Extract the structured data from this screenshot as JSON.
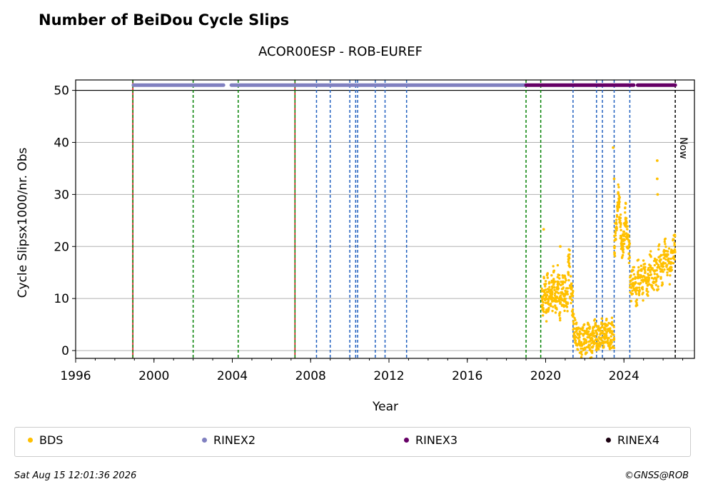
{
  "header": {
    "title": "Number of BeiDou Cycle Slips",
    "subtitle": "ACOR00ESP - ROB-EUREF"
  },
  "footer": {
    "timestamp": "Sat Aug 15 12:01:36 2026",
    "copyright": "©GNSS@ROB"
  },
  "legend": [
    {
      "label": "BDS",
      "color": "#ffc000"
    },
    {
      "label": "RINEX2",
      "color": "#8080c0"
    },
    {
      "label": "RINEX3",
      "color": "#660066"
    },
    {
      "label": "RINEX4",
      "color": "#1a0010"
    }
  ],
  "chart_data": {
    "type": "scatter",
    "xlabel": "Year",
    "ylabel": "Cycle Slipsx1000/nr. Obs",
    "xlim": [
      1996,
      2027.6
    ],
    "ylim": [
      -1.5,
      52
    ],
    "x_ticks": [
      1996,
      2000,
      2004,
      2008,
      2012,
      2016,
      2020,
      2024
    ],
    "y_ticks": [
      0,
      10,
      20,
      30,
      40,
      50
    ],
    "grid": "horizontal",
    "now_label": "Now",
    "now_year": 2026.62,
    "red_lines": [
      1998.92,
      2007.2
    ],
    "green_lines": [
      1998.92,
      2002.0,
      2004.3,
      2007.2,
      2019.0,
      2019.75
    ],
    "blue_lines": [
      2008.3,
      2009.0,
      2010.0,
      2010.3,
      2010.4,
      2011.3,
      2011.8,
      2012.9,
      2021.4,
      2022.6,
      2022.9,
      2023.5,
      2024.3
    ],
    "rinex_bars": [
      {
        "name": "RINEX2",
        "y": 51,
        "segments": [
          [
            1998.95,
            2003.55
          ],
          [
            2003.95,
            2019.0
          ]
        ]
      },
      {
        "name": "RINEX3",
        "y": 51,
        "segments": [
          [
            2019.0,
            2024.5
          ],
          [
            2024.7,
            2026.62
          ]
        ]
      }
    ],
    "bds_segments": [
      {
        "from": 2019.8,
        "to": 2021.4,
        "values": [
          10,
          9,
          12,
          11,
          8,
          13,
          10,
          11,
          9,
          12,
          10,
          15,
          11,
          9,
          10,
          14,
          12,
          8,
          11,
          10,
          13,
          9,
          12,
          11,
          10,
          16,
          18,
          12,
          11,
          9
        ]
      },
      {
        "from": 2021.4,
        "to": 2023.5,
        "values": [
          5,
          4,
          3,
          2,
          3,
          2,
          1,
          2,
          3,
          1.5,
          2,
          3,
          2.5,
          1,
          2,
          3,
          4,
          2,
          3,
          2.5,
          3,
          4,
          3,
          2,
          3.5,
          4,
          3,
          2.5,
          3,
          4,
          3
        ]
      },
      {
        "from": 2023.5,
        "to": 2024.3,
        "values": [
          20,
          22,
          25,
          28,
          30,
          27,
          24,
          22,
          20,
          21,
          23,
          26,
          24,
          22,
          20,
          19
        ]
      },
      {
        "from": 2024.3,
        "to": 2026.62,
        "values": [
          12,
          13,
          14,
          12,
          11,
          15,
          13,
          14,
          12,
          16,
          14,
          13,
          15,
          17,
          14,
          13,
          16,
          15,
          14,
          18,
          16,
          15,
          17,
          19,
          16,
          18,
          15,
          17,
          19,
          20
        ]
      }
    ],
    "bds_outliers": [
      {
        "x": 2019.9,
        "y": 23.3
      },
      {
        "x": 2020.75,
        "y": 20
      },
      {
        "x": 2023.45,
        "y": 39
      },
      {
        "x": 2023.5,
        "y": 33
      },
      {
        "x": 2025.7,
        "y": 36.5
      },
      {
        "x": 2025.7,
        "y": 33
      },
      {
        "x": 2025.72,
        "y": 30
      },
      {
        "x": 2026.6,
        "y": 22
      }
    ]
  }
}
